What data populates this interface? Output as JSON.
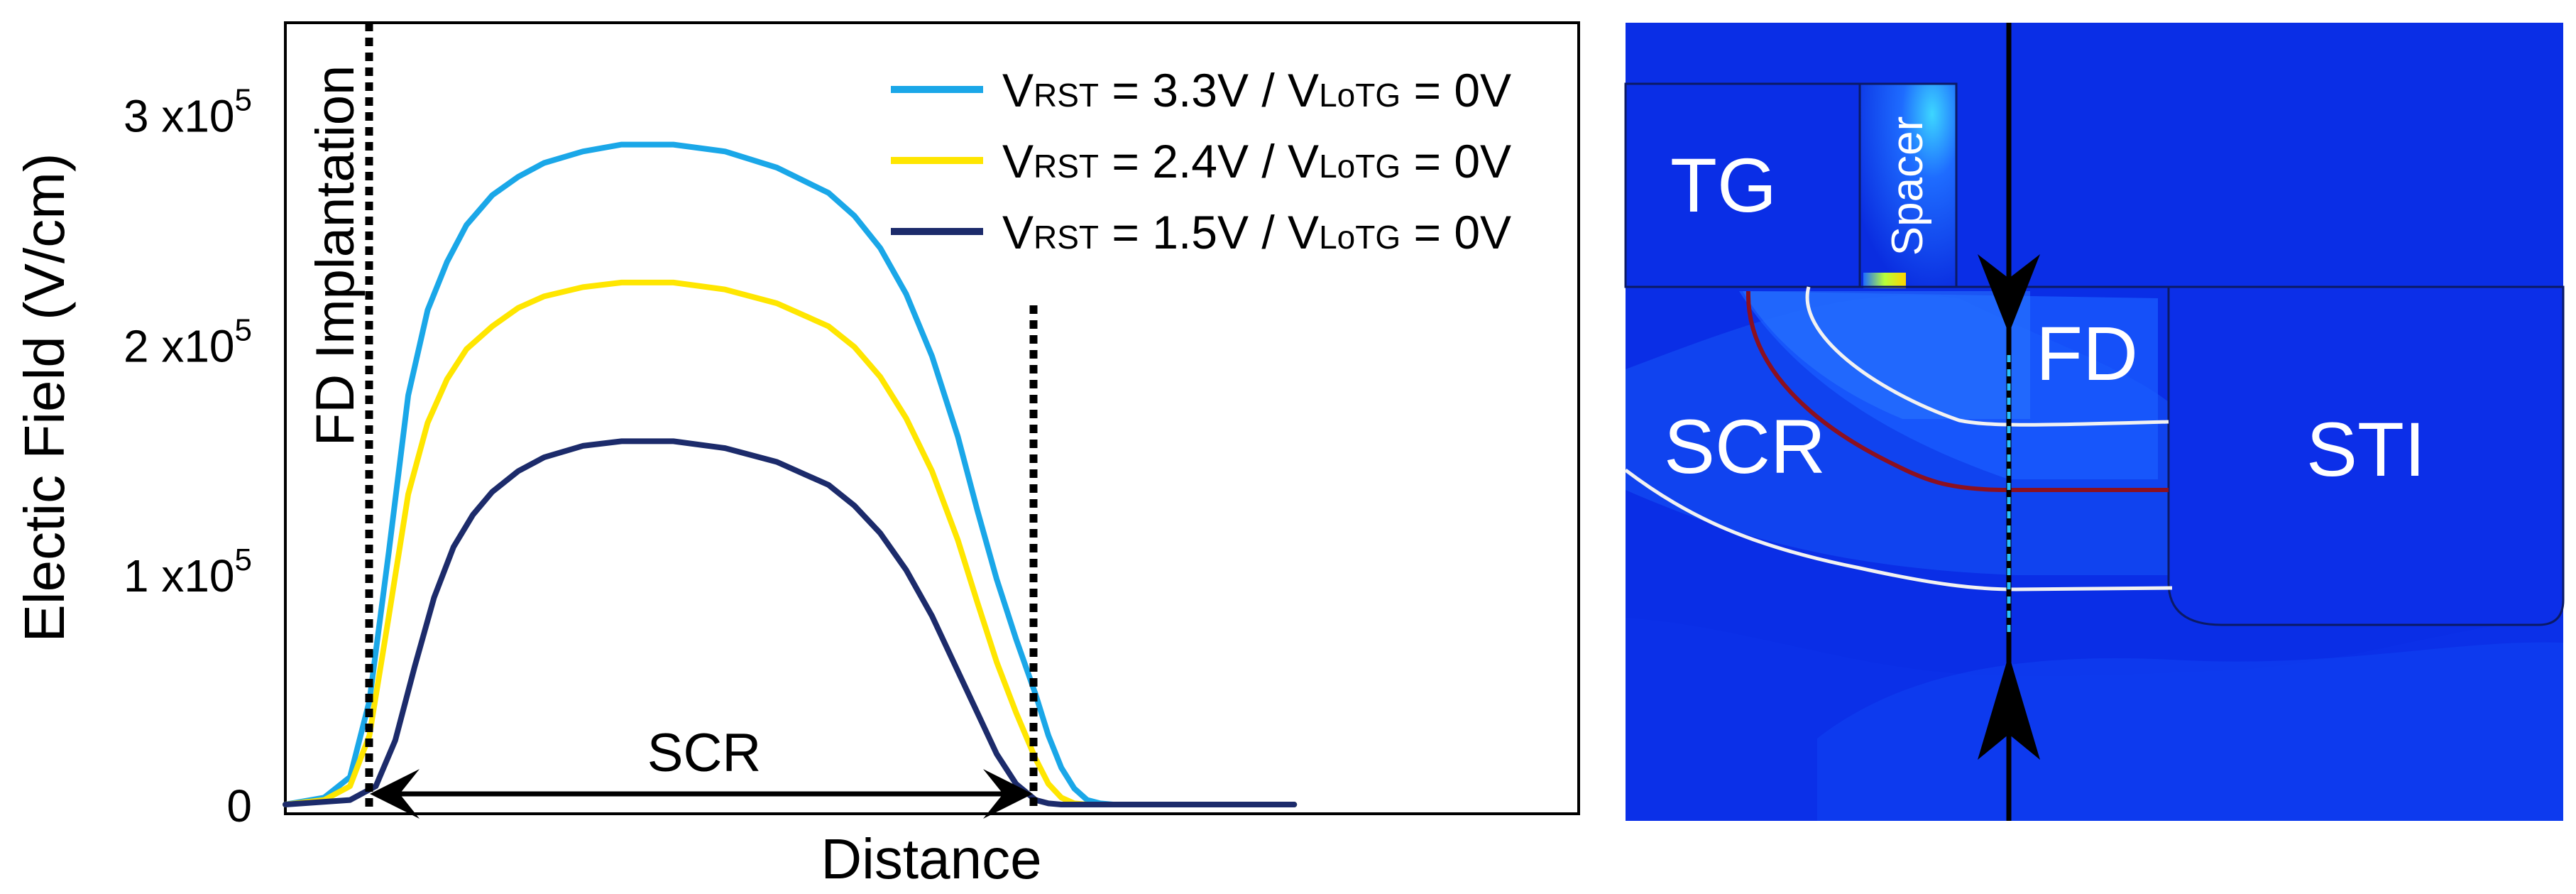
{
  "chart_data": {
    "type": "line",
    "xlabel": "Distance",
    "ylabel": "Electic Field (V/cm)",
    "x_range": [
      0,
      100
    ],
    "ylim": [
      -4000,
      340000
    ],
    "y_ticks": [
      {
        "value": 0,
        "label": "0",
        "exp": ""
      },
      {
        "value": 100000,
        "label": "1 x10",
        "exp": "5"
      },
      {
        "value": 200000,
        "label": "2 x10",
        "exp": "5"
      },
      {
        "value": 300000,
        "label": "3 x10",
        "exp": "5"
      }
    ],
    "series": [
      {
        "name": "3.3V",
        "legend_parts": [
          "V",
          "RST",
          " = 3.3V / V",
          "LoTG",
          " = 0V"
        ],
        "color": "#1aa7e8",
        "x": [
          0,
          3,
          5,
          6.5,
          8,
          9.5,
          11,
          12.5,
          14,
          16,
          18,
          20,
          23,
          26,
          30,
          34,
          38,
          42,
          44,
          46,
          48,
          50,
          52,
          53.5,
          55,
          56.5,
          58,
          59,
          60,
          61,
          62,
          63,
          64
        ],
        "values": [
          0,
          3000,
          12000,
          45000,
          110000,
          178000,
          215000,
          236000,
          252000,
          265000,
          273000,
          279000,
          284000,
          287000,
          287000,
          284000,
          277000,
          266000,
          256000,
          242000,
          222000,
          195000,
          160000,
          128000,
          98000,
          72000,
          48000,
          30000,
          16000,
          7000,
          2000,
          500,
          0
        ]
      },
      {
        "name": "2.4V",
        "legend_parts": [
          "V",
          "RST",
          " = 2.4V / V",
          "LoTG",
          " = 0V"
        ],
        "color": "#ffe600",
        "x": [
          0,
          3,
          5,
          6.5,
          8,
          9.5,
          11,
          12.5,
          14,
          16,
          18,
          20,
          23,
          26,
          30,
          34,
          38,
          42,
          44,
          46,
          48,
          50,
          52,
          53.5,
          55,
          56.5,
          58,
          59,
          60,
          61,
          62
        ],
        "values": [
          0,
          2000,
          8000,
          30000,
          82000,
          135000,
          166000,
          185000,
          198000,
          208000,
          216000,
          221000,
          225000,
          227000,
          227000,
          224000,
          218000,
          208000,
          199000,
          186000,
          168000,
          145000,
          115000,
          88000,
          62000,
          40000,
          20000,
          9000,
          3000,
          500,
          0
        ]
      },
      {
        "name": "1.5V",
        "legend_parts": [
          "V",
          "RST",
          " = 1.5V / V",
          "LoTG",
          " = 0V"
        ],
        "color": "#1c2b6b",
        "x": [
          0,
          5,
          7,
          8.5,
          10,
          11.5,
          13,
          14.5,
          16,
          18,
          20,
          23,
          26,
          30,
          34,
          38,
          42,
          44,
          46,
          48,
          50,
          52,
          53.5,
          55,
          56.5,
          58,
          59,
          60
        ],
        "values": [
          0,
          2000,
          8000,
          28000,
          60000,
          90000,
          112000,
          126000,
          136000,
          145000,
          151000,
          156000,
          158000,
          158000,
          155000,
          149000,
          139000,
          130000,
          118000,
          102000,
          82000,
          58000,
          40000,
          22000,
          9000,
          2000,
          500,
          0
        ]
      }
    ],
    "annotations": {
      "fd_implantation": "FD Implantation",
      "scr": "SCR"
    }
  },
  "simulation": {
    "labels": {
      "tg": "TG",
      "spacer": "Spacer",
      "fd": "FD",
      "scr": "SCR",
      "sti": "STI"
    }
  }
}
